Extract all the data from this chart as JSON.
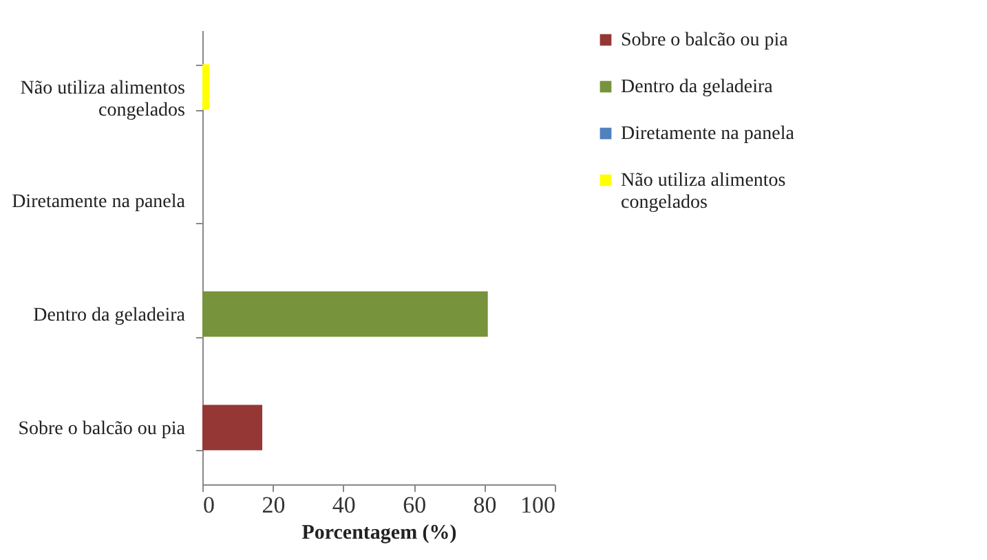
{
  "chart_data": {
    "type": "bar",
    "orientation": "horizontal",
    "xlabel": "Porcentagem (%)",
    "categories": [
      "Não utiliza alimentos congelados",
      "Diretamente na panela",
      "Dentro da geladeira",
      "Sobre o balcão ou pia"
    ],
    "series": [
      {
        "name": "Sobre o balcão ou pia",
        "color": "#953735",
        "values": [
          null,
          null,
          null,
          17
        ]
      },
      {
        "name": "Dentro da geladeira",
        "color": "#77933c",
        "values": [
          null,
          null,
          81,
          null
        ]
      },
      {
        "name": "Diretamente na panela",
        "color": "#4f81bd",
        "values": [
          null,
          0,
          null,
          null
        ]
      },
      {
        "name": "Não utiliza alimentos congelados",
        "color": "#ffff00",
        "values": [
          2,
          null,
          null,
          null
        ]
      }
    ],
    "xlim": [
      0,
      100
    ],
    "xticks": [
      0,
      20,
      40,
      60,
      80,
      100
    ],
    "legend": "right"
  }
}
